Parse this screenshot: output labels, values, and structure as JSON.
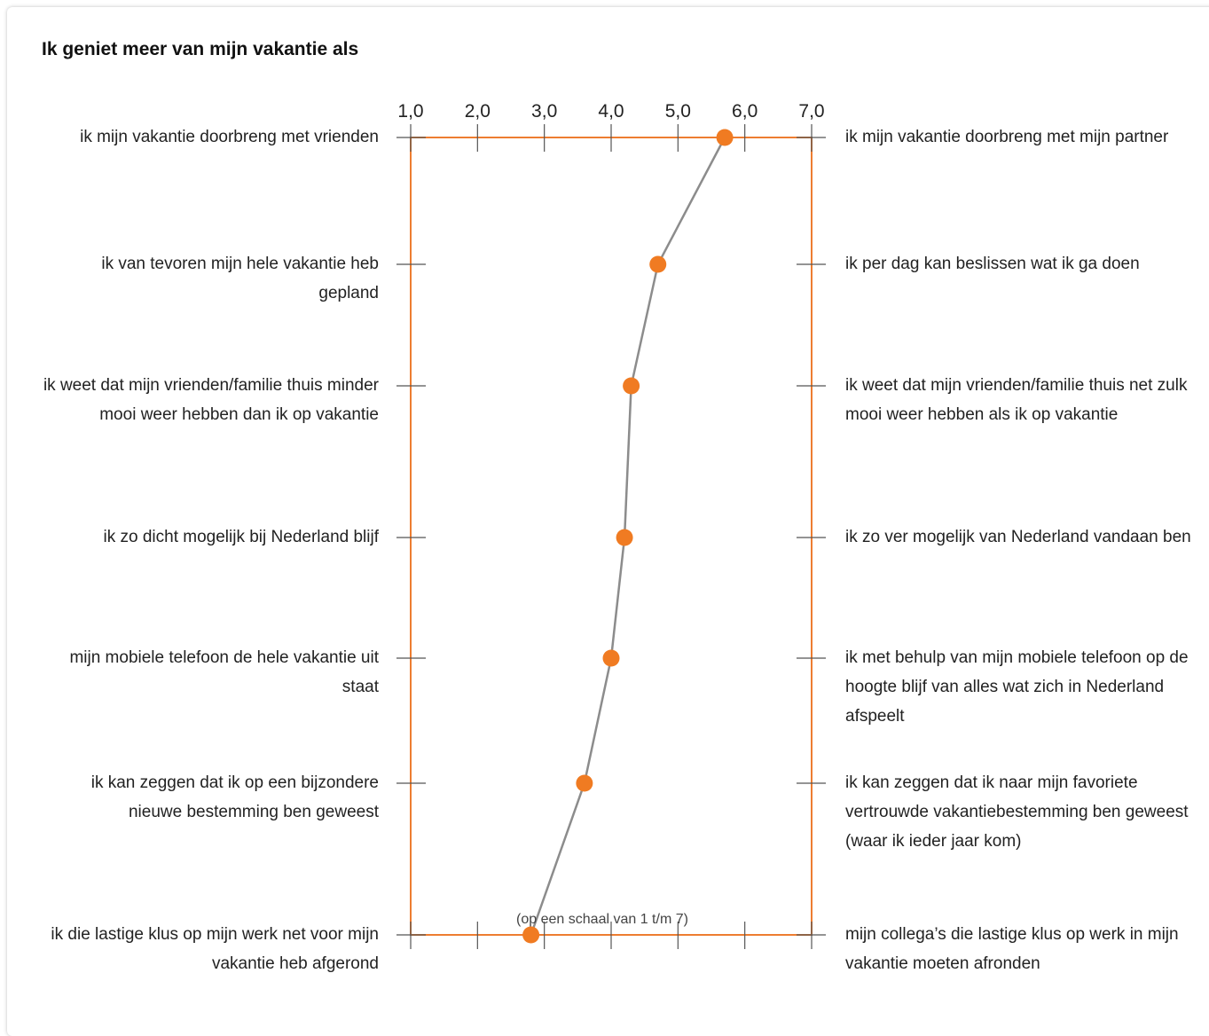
{
  "title": "Ik geniet meer van mijn vakantie als",
  "footnote": "(op een schaal van 1 t/m 7)",
  "colors": {
    "frame": "#ed7d31",
    "point": "#f07b22",
    "line": "#8c8c8c",
    "tick": "#555555"
  },
  "chart_data": {
    "type": "line",
    "title": "Ik geniet meer van mijn vakantie als",
    "x_ticks": [
      "1,0",
      "2,0",
      "3,0",
      "4,0",
      "5,0",
      "6,0",
      "7,0"
    ],
    "xlim": [
      1,
      7
    ],
    "xlabel": "(op een schaal van 1 t/m 7)",
    "grid": false,
    "items": [
      {
        "left": "ik mijn vakantie doorbreng met vrienden",
        "right": "ik mijn vakantie doorbreng met mijn partner",
        "value": 5.7
      },
      {
        "left": "ik van tevoren mijn hele vakantie heb gepland",
        "right": "ik per dag kan beslissen wat ik ga doen",
        "value": 4.7
      },
      {
        "left": "ik weet dat mijn vrienden/familie thuis minder mooi weer hebben dan ik op vakantie",
        "right": "ik weet dat mijn vrienden/familie thuis net zulk mooi weer hebben als ik op vakantie",
        "value": 4.3
      },
      {
        "left": "ik zo dicht mogelijk bij Nederland blijf",
        "right": "ik zo ver mogelijk van Nederland vandaan ben",
        "value": 4.2
      },
      {
        "left": "mijn mobiele telefoon de hele vakantie uit staat",
        "right": "ik met behulp van mijn mobiele telefoon op de hoogte blijf van alles wat zich in Nederland afspeelt",
        "value": 4.0
      },
      {
        "left": "ik kan zeggen dat ik op een bijzondere nieuwe bestemming ben geweest",
        "right": "ik kan zeggen dat ik naar mijn favoriete vertrouwde vakantiebestemming ben geweest (waar ik ieder jaar kom)",
        "value": 3.6
      },
      {
        "left": "ik die lastige klus op mijn werk net voor mijn vakantie heb afgerond",
        "right": "mijn collega’s die lastige klus op werk in mijn vakantie moeten afronden",
        "value": 2.8
      }
    ]
  }
}
